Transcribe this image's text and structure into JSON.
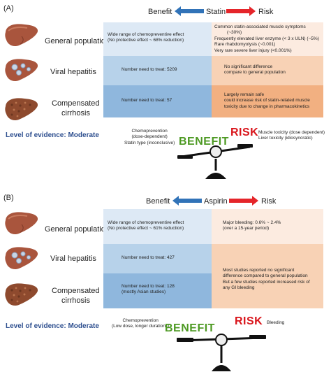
{
  "colors": {
    "benefit_arrow": "#3173b8",
    "risk_arrow": "#e5252a",
    "benefit_light": "#dde9f5",
    "benefit_mid": "#b7d2ea",
    "benefit_dark": "#8fb7dd",
    "risk_light": "#fcebe0",
    "risk_mid": "#f8d2b5",
    "risk_dark": "#f2b081",
    "benefit_text": "#4e9a24",
    "risk_text": "#d9151b",
    "evidence_text": "#2e4f8f"
  },
  "panel_a": {
    "label": "(A)",
    "header": {
      "benefit": "Benefit",
      "drug": "Statin",
      "risk": "Risk"
    },
    "rows": [
      {
        "label": "General population",
        "benefit": [
          "Wide range of chemopreventive effect",
          "(No protective effect ~ 68% reduction)"
        ],
        "risk": [
          "Common statin-associated muscle symptoms",
          "(~30%)",
          "Frequently elevated liver enzyme (< 3 x ULN) (~5%)",
          "Rare rhabdomyolysis (~0.001)",
          "Very rare severe liver injury (<0.001%)"
        ]
      },
      {
        "label": "Viral hepatitis",
        "benefit": [
          "Number need to treat: 5209"
        ],
        "risk": [
          "No significant difference",
          "compare to general population"
        ]
      },
      {
        "label_lines": [
          "Compensated",
          "cirrhosis"
        ],
        "benefit": [
          "Number need to treat: 57"
        ],
        "risk": [
          "Largely remain safe",
          "could increase risk of statin-related muscle",
          "toxicity due to change in pharmacokinetics"
        ]
      }
    ],
    "evidence": "Level of evidence: Moderate",
    "benefit_note": [
      "Chemoprevention",
      "(dose-dependent)",
      "Statin type (inconclusive)"
    ],
    "big_benefit": "BENEFIT",
    "big_risk": "RISK",
    "risk_note": [
      "Muscle toxicity (dose dependent)",
      "Liver toxicity (idiosyncratic)"
    ]
  },
  "panel_b": {
    "label": "(B)",
    "header": {
      "benefit": "Benefit",
      "drug": "Aspirin",
      "risk": "Risk"
    },
    "rows": [
      {
        "label": "General population",
        "benefit": [
          "Wide range of chemopreventive effect",
          "(No protective effect ~ 61% reduction)"
        ],
        "risk": [
          "Major bleeding: 0.6% ~ 2.4%",
          "(over a 15-year period)"
        ]
      },
      {
        "label": "Viral hepatitis",
        "benefit": [
          "Number need to treat: 427"
        ],
        "risk": []
      },
      {
        "label_lines": [
          "Compensated",
          "cirrhosis"
        ],
        "benefit": [
          "Number need to treat: 128",
          "(mostly Asian studies)"
        ],
        "risk": []
      }
    ],
    "merged_risk": [
      "Most studies reported no significant",
      "difference compared to general population",
      "But a few studies reported increased risk of",
      "any GI bleeding"
    ],
    "evidence": "Level of evidence: Moderate",
    "benefit_note": [
      "Chemoprevention",
      "(Low dose, longer duration↑)"
    ],
    "big_benefit": "BENEFIT",
    "big_risk": "RISK",
    "risk_note": [
      "Bleeding"
    ]
  }
}
